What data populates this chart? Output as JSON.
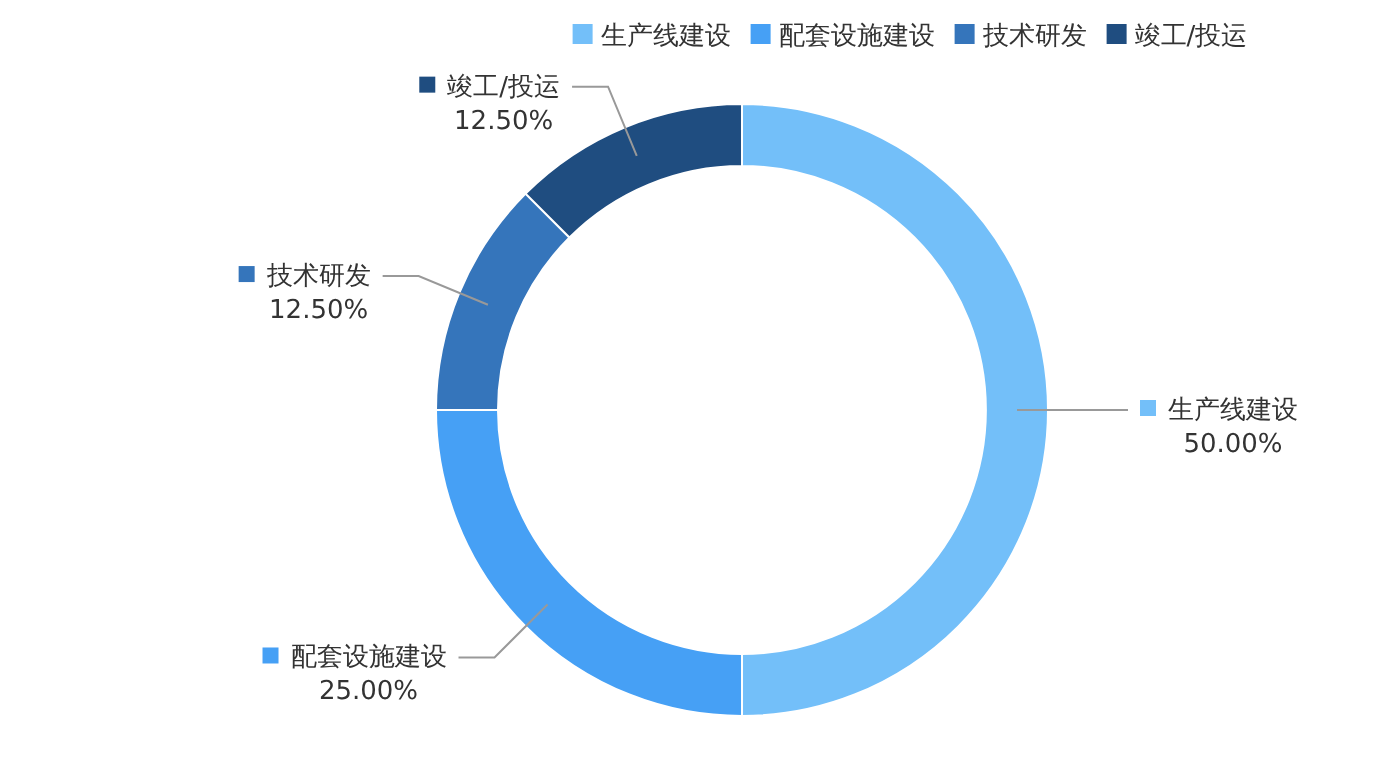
{
  "chart_data": {
    "type": "donut",
    "categories": [
      "生产线建设",
      "配套设施建设",
      "技术研发",
      "竣工/投运"
    ],
    "values": [
      50,
      25,
      12.5,
      12.5
    ],
    "colors": [
      "#73bff9",
      "#46a0f5",
      "#3575bb",
      "#1f4d80"
    ],
    "value_labels": [
      "50.00%",
      "25.00%",
      "12.50%",
      "12.50%"
    ],
    "legend": "top"
  }
}
